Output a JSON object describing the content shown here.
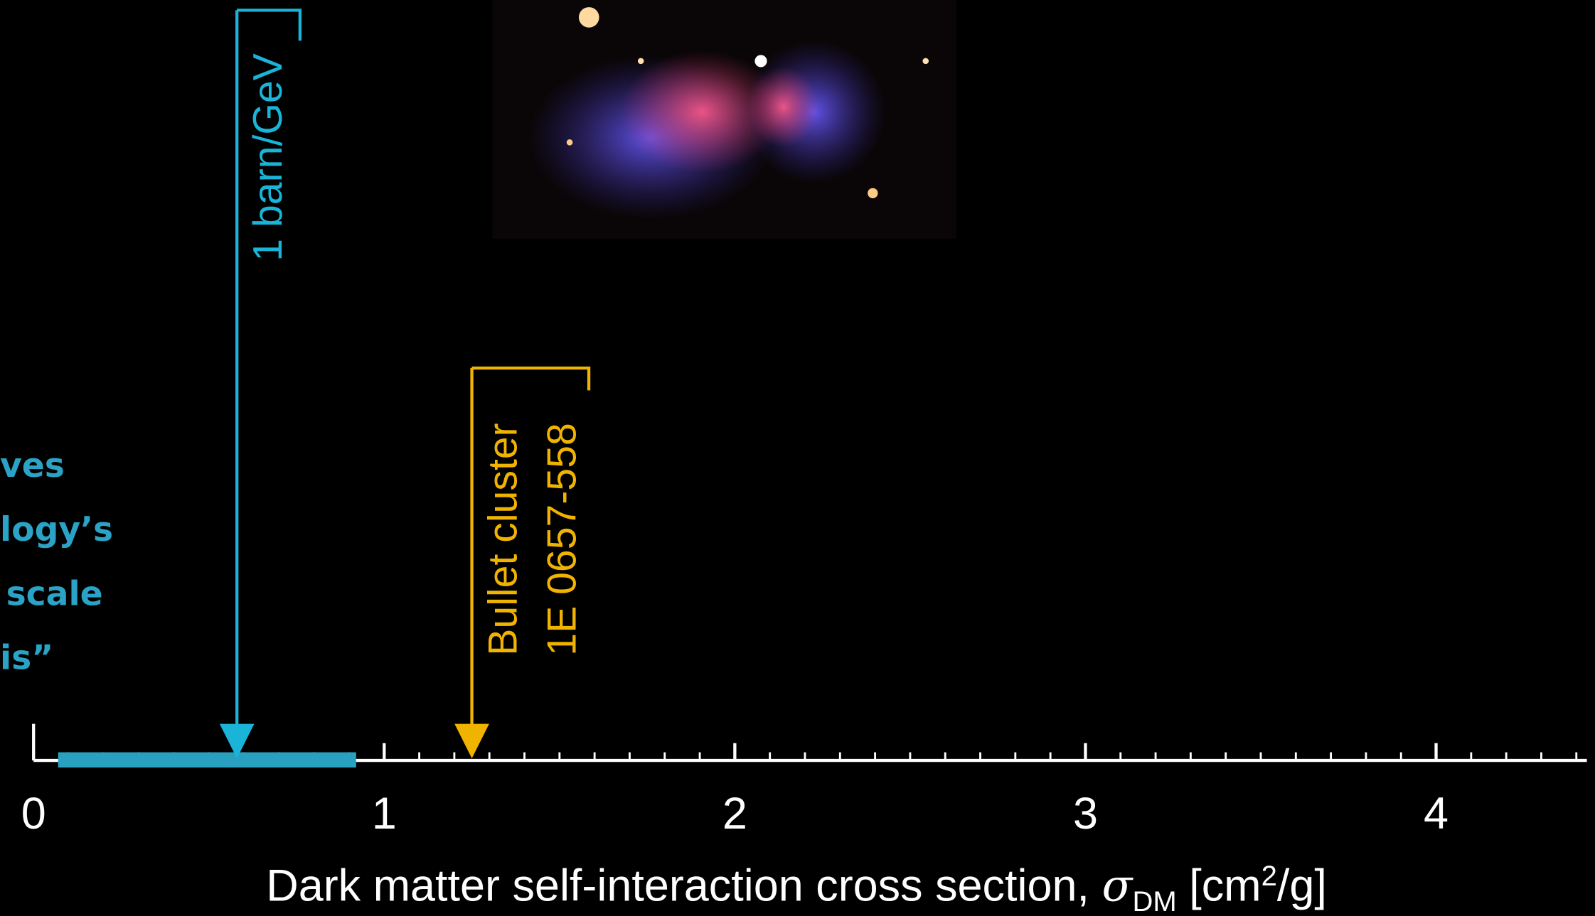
{
  "chart_data": {
    "type": "number-line",
    "xlim": [
      0,
      4.43
    ],
    "xticks": [
      0,
      1,
      2,
      3,
      4
    ],
    "minor_xticks": [
      0.1,
      0.2,
      0.3,
      0.4,
      0.5,
      0.6,
      0.7,
      0.8,
      0.9,
      1.1,
      1.2,
      1.3,
      1.4,
      1.5,
      1.6,
      1.7,
      1.8,
      1.9,
      2.1,
      2.2,
      2.3,
      2.4,
      2.5,
      2.6,
      2.7,
      2.8,
      2.9,
      3.1,
      3.2,
      3.3,
      3.4,
      3.5,
      3.6,
      3.7,
      3.8,
      3.9,
      4.1,
      4.2,
      4.3,
      4.4
    ],
    "xlabel": {
      "text": "Dark matter self-interaction cross section, ",
      "symbol": "σ",
      "subscript": "DM",
      "unit": " [cm",
      "superscript": "2",
      "unit_end": "/g]"
    },
    "annotations": [
      {
        "label": [
          "1 barn/GeV"
        ],
        "x": 0.58,
        "color": "#1ab4d8"
      },
      {
        "label": [
          "Bullet cluster",
          "1E 0657-558"
        ],
        "x": 1.25,
        "color": "#f0b400"
      }
    ],
    "range": {
      "x": [
        0.07,
        0.92
      ],
      "color": "#2aa0c0"
    },
    "side_text": [
      "ves",
      "logy’s",
      "scale",
      "is”"
    ]
  }
}
